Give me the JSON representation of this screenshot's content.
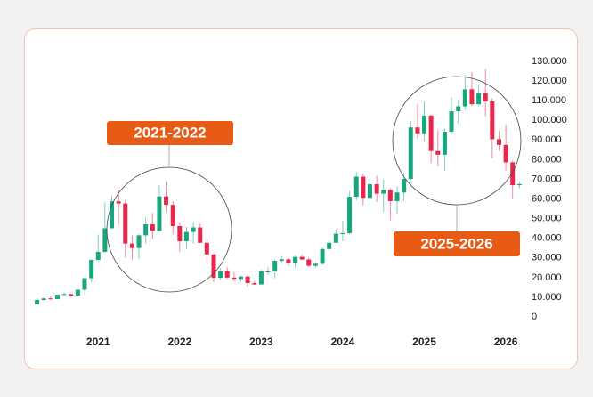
{
  "chart_data": {
    "type": "candlestick",
    "up_color": "#17a67e",
    "down_color": "#e8284a",
    "annotations": [
      {
        "text": "2021-2022"
      },
      {
        "text": "2025-2026"
      }
    ],
    "x": [
      2020.25,
      2020.333,
      2020.417,
      2020.5,
      2020.583,
      2020.667,
      2020.75,
      2020.833,
      2020.917,
      2021,
      2021.083,
      2021.167,
      2021.25,
      2021.333,
      2021.417,
      2021.5,
      2021.583,
      2021.667,
      2021.75,
      2021.833,
      2021.917,
      2022,
      2022.083,
      2022.167,
      2022.25,
      2022.333,
      2022.417,
      2022.5,
      2022.583,
      2022.667,
      2022.75,
      2022.833,
      2022.917,
      2023,
      2023.083,
      2023.167,
      2023.25,
      2023.333,
      2023.417,
      2023.5,
      2023.583,
      2023.667,
      2023.75,
      2023.833,
      2023.917,
      2024,
      2024.083,
      2024.167,
      2024.25,
      2024.333,
      2024.417,
      2024.5,
      2024.583,
      2024.667,
      2024.75,
      2024.833,
      2024.917,
      2025,
      2025.083,
      2025.167,
      2025.25,
      2025.333,
      2025.417,
      2025.5,
      2025.583,
      2025.667,
      2025.75,
      2025.833,
      2025.917,
      2026,
      2026.083,
      2026.167
    ],
    "open": [
      6400,
      8600,
      9400,
      9100,
      11300,
      11600,
      10800,
      13800,
      19700,
      29000,
      33100,
      45100,
      58800,
      57700,
      37300,
      35000,
      41500,
      47100,
      43800,
      61300,
      57000,
      46200,
      38500,
      43200,
      45500,
      37700,
      31800,
      19900,
      23300,
      20000,
      19400,
      20500,
      17200,
      16500,
      23100,
      23100,
      28500,
      29300,
      27200,
      30500,
      29200,
      26000,
      27000,
      34500,
      37700,
      42300,
      42600,
      61100,
      71300,
      60600,
      67500,
      62700,
      64600,
      58900,
      63300,
      70200,
      96400,
      93400,
      102400,
      84400,
      82500,
      94200,
      104600,
      107100,
      115800,
      108200,
      114000,
      109600,
      90400,
      87500,
      78600,
      67000
    ],
    "high": [
      9400,
      10000,
      10400,
      11400,
      12400,
      12000,
      14000,
      19800,
      29300,
      41900,
      58300,
      61800,
      64800,
      59500,
      41300,
      42200,
      50500,
      52900,
      67000,
      69000,
      59000,
      48000,
      45800,
      48200,
      47400,
      40000,
      32400,
      24700,
      25200,
      22700,
      21000,
      21400,
      18400,
      23900,
      25200,
      29200,
      31000,
      29800,
      31400,
      31800,
      30100,
      27500,
      35200,
      38400,
      44700,
      48900,
      64000,
      73800,
      72800,
      72000,
      71900,
      70000,
      65600,
      66500,
      73600,
      99600,
      108400,
      109600,
      102800,
      95000,
      95800,
      111900,
      110400,
      123200,
      124500,
      117900,
      126200,
      111200,
      94600,
      97900,
      79500,
      69000
    ],
    "low": [
      6200,
      8100,
      8900,
      8900,
      11000,
      10000,
      10500,
      13200,
      17600,
      28100,
      32300,
      45000,
      47000,
      30000,
      28800,
      29300,
      37300,
      39600,
      43300,
      53300,
      42000,
      33000,
      34300,
      37200,
      37700,
      26700,
      17600,
      18800,
      19600,
      18200,
      18200,
      15500,
      16300,
      16500,
      21400,
      19600,
      27000,
      25800,
      24800,
      28900,
      25300,
      24900,
      26600,
      34100,
      37600,
      38500,
      41900,
      59300,
      56600,
      56600,
      58400,
      53500,
      49100,
      52600,
      58900,
      66800,
      90500,
      89300,
      78200,
      76600,
      74400,
      93300,
      98200,
      105300,
      107300,
      107300,
      102000,
      80600,
      84400,
      74500,
      60000,
      65500
    ],
    "close": [
      8600,
      9400,
      9100,
      11300,
      11600,
      10800,
      13800,
      19700,
      29000,
      33100,
      45100,
      58800,
      57700,
      37300,
      35000,
      41500,
      47100,
      43800,
      61300,
      57000,
      46200,
      38500,
      43200,
      45500,
      37700,
      31800,
      19900,
      23300,
      20000,
      19400,
      20500,
      17200,
      16500,
      23100,
      23100,
      28500,
      29300,
      27200,
      30500,
      29200,
      26000,
      27000,
      34500,
      37700,
      42300,
      42600,
      61100,
      71300,
      60600,
      67500,
      62700,
      64600,
      58900,
      63300,
      70200,
      96400,
      93400,
      102400,
      84400,
      82500,
      94200,
      104600,
      107100,
      115800,
      108200,
      114000,
      109600,
      90400,
      87500,
      78600,
      67000,
      67500
    ],
    "xlim": [
      2020.2,
      2026.25
    ],
    "xticks": [
      2021,
      2022,
      2023,
      2024,
      2025,
      2026
    ],
    "ylim": [
      0,
      130000
    ],
    "yticks": [
      0,
      {
        "value": 10000,
        "label": "10.000"
      },
      {
        "value": 20000,
        "label": "20.000"
      },
      {
        "value": 30000,
        "label": "30.000"
      },
      {
        "value": 40000,
        "label": "40.000"
      },
      {
        "value": 50000,
        "label": "50.000"
      },
      {
        "value": 60000,
        "label": "60.000"
      },
      {
        "value": 70000,
        "label": "70.000"
      },
      {
        "value": 80000,
        "label": "80.000"
      },
      {
        "value": 90000,
        "label": "90.000"
      },
      {
        "value": 100000,
        "label": "100.000"
      },
      {
        "value": 110000,
        "label": "110.000"
      },
      {
        "value": 120000,
        "label": "120.000"
      },
      {
        "value": 130000,
        "label": "130.000"
      }
    ]
  }
}
